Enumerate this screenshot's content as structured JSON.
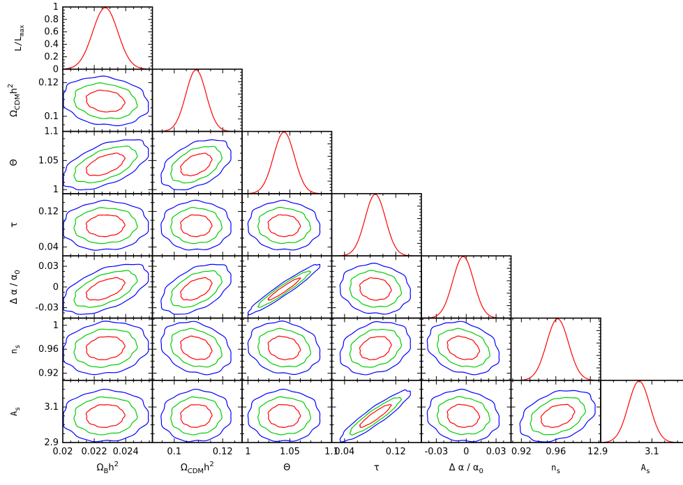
{
  "chart_data": {
    "type": "triangle-plot",
    "params": [
      {
        "key": "omb",
        "label_main": "Ω",
        "label_sub": "B",
        "label_post": "h",
        "label_sup": "2",
        "range": [
          0.02,
          0.0257
        ],
        "ticks": [
          0.02,
          0.022,
          0.024
        ],
        "tick_labels": [
          "0.02",
          "0.022",
          "0.024"
        ],
        "mean": 0.0227,
        "sigma": 0.0008
      },
      {
        "key": "omc",
        "label_main": "Ω",
        "label_sub": "CDM",
        "label_post": "h",
        "label_sup": "2",
        "range": [
          0.091,
          0.128
        ],
        "ticks": [
          0.1,
          0.12
        ],
        "tick_labels": [
          "0.1",
          "0.12"
        ],
        "mean": 0.109,
        "sigma": 0.0042
      },
      {
        "key": "theta",
        "label_main": "Θ",
        "label_sub": "",
        "label_post": "",
        "label_sup": "",
        "range": [
          0.993,
          1.1
        ],
        "ticks": [
          1,
          1.05,
          1.1
        ],
        "tick_labels": [
          "1",
          "1.05",
          "1.1"
        ],
        "mean": 1.043,
        "sigma": 0.0125
      },
      {
        "key": "tau",
        "label_main": "τ",
        "label_sub": "",
        "label_post": "",
        "label_sup": "",
        "range": [
          0.02,
          0.16
        ],
        "ticks": [
          0.04,
          0.12
        ],
        "tick_labels": [
          "0.04",
          "0.12"
        ],
        "mean": 0.088,
        "sigma": 0.016
      },
      {
        "key": "alpha",
        "label_main": "Δ α / α",
        "label_sub": "0",
        "label_post": "",
        "label_sup": "",
        "range": [
          -0.045,
          0.045
        ],
        "ticks": [
          -0.03,
          0,
          0.03
        ],
        "tick_labels": [
          "-0.03",
          "0",
          "0.03"
        ],
        "mean": -0.003,
        "sigma": 0.0105
      },
      {
        "key": "ns",
        "label_main": "n",
        "label_sub": "s",
        "label_post": "",
        "label_sup": "",
        "range": [
          0.908,
          1.012
        ],
        "ticks": [
          0.92,
          0.96,
          1
        ],
        "tick_labels": [
          "0.92",
          "0.96",
          "1"
        ],
        "mean": 0.962,
        "sigma": 0.0127
      },
      {
        "key": "As",
        "label_main": "A",
        "label_sub": "s",
        "label_post": "",
        "label_sup": "",
        "range": [
          2.9,
          3.25
        ],
        "ticks": [
          2.9,
          3.1
        ],
        "tick_labels": [
          "2.9",
          "3.1"
        ],
        "mean": 3.05,
        "sigma": 0.042
      }
    ],
    "correlations": {
      "0-1": -0.15,
      "0-2": 0.55,
      "0-3": 0.05,
      "0-4": 0.55,
      "0-5": 0.15,
      "0-6": 0.05,
      "1-2": 0.45,
      "1-3": 0.0,
      "1-4": 0.5,
      "1-5": -0.25,
      "1-6": 0.05,
      "2-3": -0.05,
      "2-4": 0.96,
      "2-5": -0.15,
      "2-6": 0.0,
      "3-4": -0.1,
      "3-5": 0.25,
      "3-6": 0.92,
      "4-5": -0.25,
      "4-6": -0.1,
      "5-6": 0.35
    },
    "first_panel_ylabel": "L/L",
    "first_panel_ylabel_sub": "max",
    "first_panel_yticks": [
      "1",
      "0.8",
      "0.6",
      "0.4",
      "0.2",
      "0"
    ],
    "contours": {
      "colors": [
        "#ff0000",
        "#00cc00",
        "#0000ff"
      ],
      "levels_sigma": [
        1,
        2,
        3
      ]
    },
    "curve_color": "#ff0000",
    "grid": false,
    "legend": "none"
  }
}
